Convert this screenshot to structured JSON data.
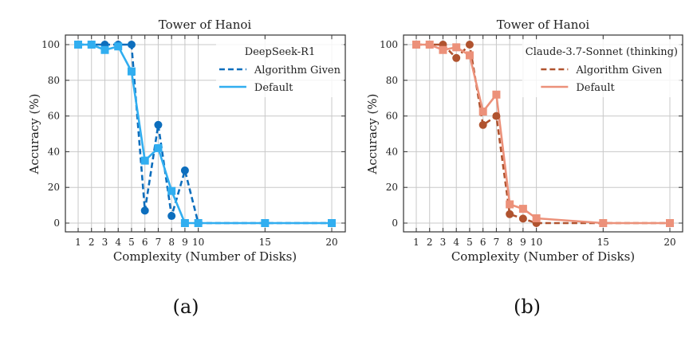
{
  "chart_data": [
    {
      "type": "line",
      "panel_label": "(a)",
      "title": "Tower of Hanoi",
      "xlabel": "Complexity (Number of Disks)",
      "ylabel": "Accuracy (%)",
      "xticks": [
        1,
        2,
        3,
        4,
        5,
        6,
        7,
        8,
        9,
        10,
        15,
        20
      ],
      "yticks": [
        0,
        20,
        40,
        60,
        80,
        100
      ],
      "xlim": [
        0.05,
        21
      ],
      "ylim": [
        -5,
        105
      ],
      "grid": true,
      "legend_title": "DeepSeek-R1",
      "legend_position": "top-right",
      "x": [
        1,
        2,
        3,
        4,
        5,
        6,
        7,
        8,
        9,
        10,
        15,
        20
      ],
      "series": [
        {
          "name": "Algorithm Given",
          "style": "dashed",
          "marker": "circle",
          "color": "#0d6ebd",
          "values": [
            100,
            100,
            100,
            100,
            100,
            7,
            55,
            4,
            29.5,
            0,
            0,
            0
          ]
        },
        {
          "name": "Default",
          "style": "solid",
          "marker": "square",
          "color": "#31aef0",
          "values": [
            100,
            100,
            97,
            99,
            85,
            35,
            42,
            18,
            0,
            0,
            0,
            0
          ]
        }
      ]
    },
    {
      "type": "line",
      "panel_label": "(b)",
      "title": "Tower of Hanoi",
      "xlabel": "Complexity (Number of Disks)",
      "ylabel": "Accuracy (%)",
      "xticks": [
        1,
        2,
        3,
        4,
        5,
        6,
        7,
        8,
        9,
        10,
        15,
        20
      ],
      "yticks": [
        0,
        20,
        40,
        60,
        80,
        100
      ],
      "xlim": [
        0.05,
        21
      ],
      "ylim": [
        -5,
        105
      ],
      "grid": true,
      "legend_title": "Claude-3.7-Sonnet (thinking)",
      "legend_position": "top-right",
      "x": [
        1,
        2,
        3,
        4,
        5,
        6,
        7,
        8,
        9,
        10,
        15,
        20
      ],
      "series": [
        {
          "name": "Algorithm Given",
          "style": "dashed",
          "marker": "circle",
          "color": "#b0532f",
          "values": [
            100,
            100,
            100,
            92.5,
            100,
            55,
            60,
            5,
            2.5,
            0,
            0,
            0
          ]
        },
        {
          "name": "Default",
          "style": "solid",
          "marker": "square",
          "color": "#ec917a",
          "values": [
            100,
            100,
            97,
            98.5,
            94,
            62.5,
            72,
            10.5,
            8,
            2.7,
            0,
            0
          ]
        }
      ]
    }
  ]
}
